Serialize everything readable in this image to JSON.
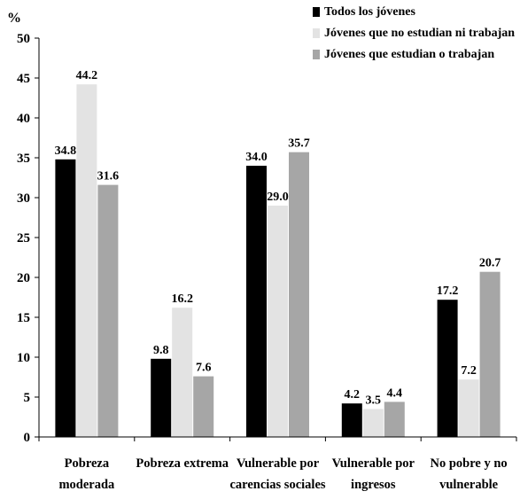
{
  "chart_data": {
    "type": "bar",
    "ylabel": "%",
    "ylim": [
      0,
      50
    ],
    "yticks": [
      0,
      5,
      10,
      15,
      20,
      25,
      30,
      35,
      40,
      45,
      50
    ],
    "grid": false,
    "legend_position": "top-right",
    "categories": [
      [
        "Pobreza",
        "moderada"
      ],
      [
        "Pobreza extrema"
      ],
      [
        "Vulnerable por",
        "carencias sociales"
      ],
      [
        "Vulnerable por",
        "ingresos"
      ],
      [
        "No pobre y no",
        "vulnerable"
      ]
    ],
    "series": [
      {
        "name": "Todos los jóvenes",
        "color": "#000000",
        "values": [
          34.8,
          9.8,
          34.0,
          4.2,
          17.2
        ],
        "labels": [
          "34.8",
          "9.8",
          "34.0",
          "4.2",
          "17.2"
        ]
      },
      {
        "name": "Jóvenes que no estudian ni trabajan",
        "color": "#e3e3e3",
        "values": [
          44.2,
          16.2,
          29.0,
          3.5,
          7.2
        ],
        "labels": [
          "44.2",
          "16.2",
          "29.0",
          "3.5",
          "7.2"
        ]
      },
      {
        "name": "Jóvenes que estudian o trabajan",
        "color": "#a6a6a6",
        "values": [
          31.6,
          7.6,
          35.7,
          4.4,
          20.7
        ],
        "labels": [
          "31.6",
          "7.6",
          "35.7",
          "4.4",
          "20.7"
        ]
      }
    ]
  }
}
